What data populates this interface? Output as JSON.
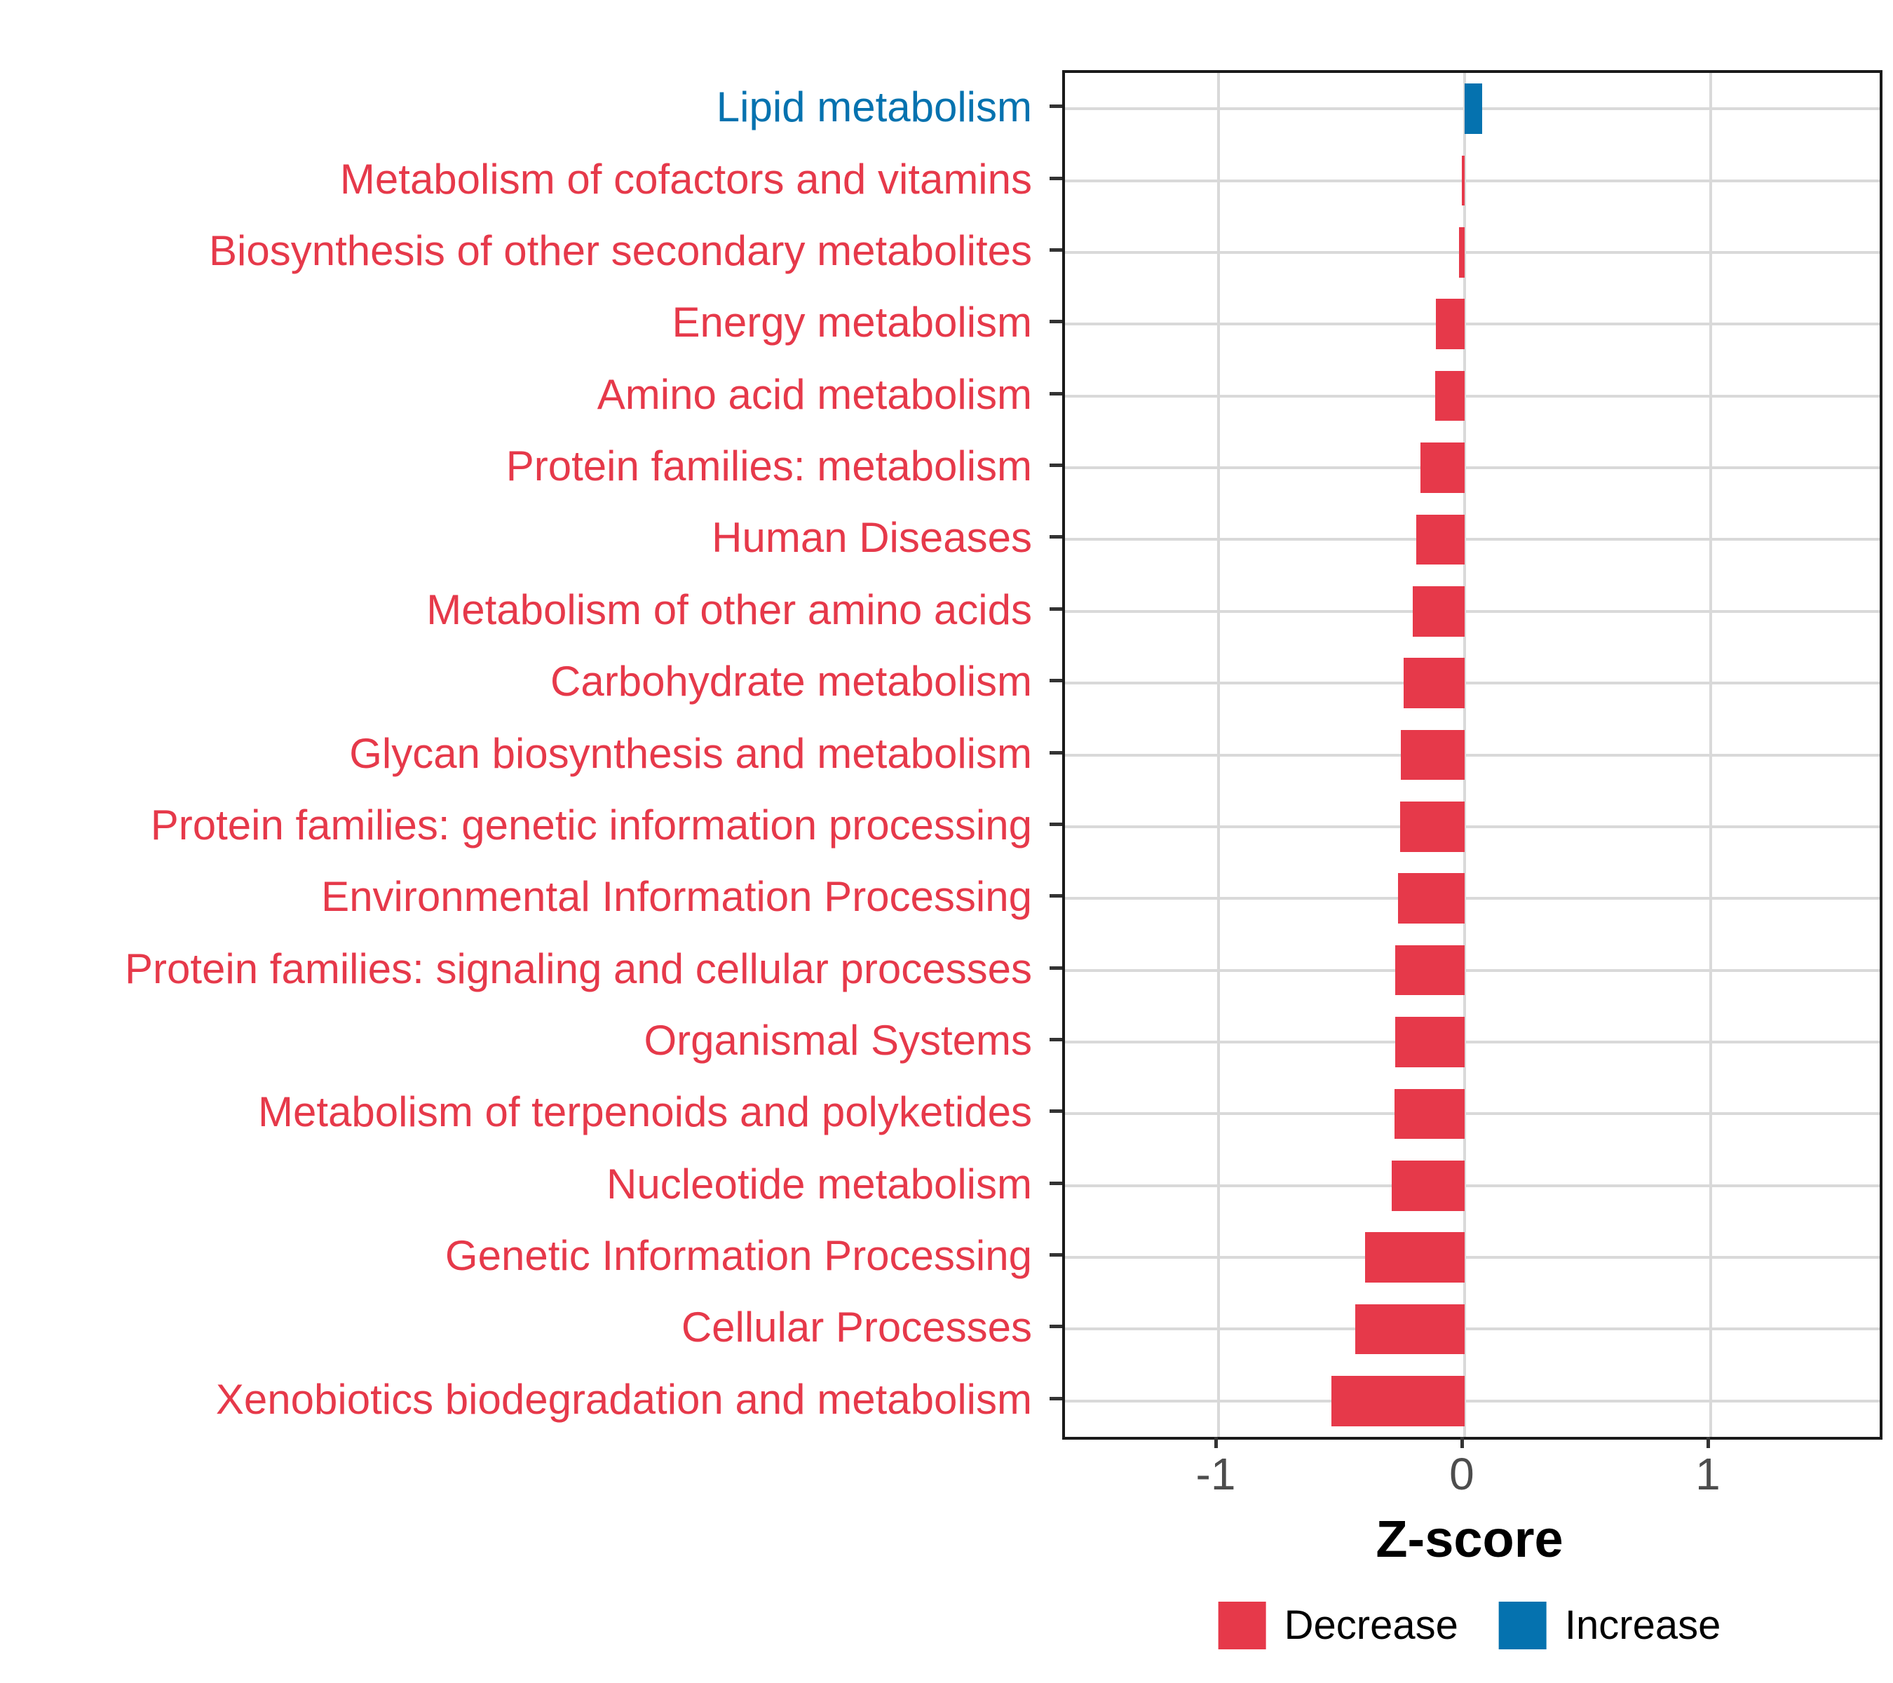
{
  "chart_data": {
    "type": "bar",
    "orientation": "horizontal",
    "title": "",
    "xlabel": "Z-score",
    "ylabel": "",
    "xlim": [
      -1.624,
      1.687
    ],
    "xticks": [
      -1,
      0,
      1
    ],
    "xtick_labels": [
      "-1",
      "0",
      "1"
    ],
    "grid": "on",
    "legend_position": "bottom",
    "bar_height_frac": 0.7,
    "categories": [
      "Lipid metabolism",
      "Metabolism of cofactors and vitamins",
      "Biosynthesis of other secondary metabolites",
      "Energy metabolism",
      "Amino acid metabolism",
      "Protein families: metabolism",
      "Human Diseases",
      "Metabolism of other amino acids",
      "Carbohydrate metabolism",
      "Glycan biosynthesis and metabolism",
      "Protein families: genetic information processing",
      "Environmental Information Processing",
      "Protein families: signaling and cellular processes",
      "Organismal Systems",
      "Metabolism of terpenoids and polyketides",
      "Nucleotide metabolism",
      "Genetic Information Processing",
      "Cellular Processes",
      "Xenobiotics biodegradation and metabolism"
    ],
    "values": [
      0.072,
      -0.012,
      -0.022,
      -0.117,
      -0.12,
      -0.18,
      -0.197,
      -0.211,
      -0.248,
      -0.259,
      -0.262,
      -0.271,
      -0.282,
      -0.282,
      -0.285,
      -0.296,
      -0.405,
      -0.444,
      -0.541
    ],
    "directions": [
      "Increase",
      "Decrease",
      "Decrease",
      "Decrease",
      "Decrease",
      "Decrease",
      "Decrease",
      "Decrease",
      "Decrease",
      "Decrease",
      "Decrease",
      "Decrease",
      "Decrease",
      "Decrease",
      "Decrease",
      "Decrease",
      "Decrease",
      "Decrease",
      "Decrease"
    ],
    "colors": {
      "Decrease": "#e6394a",
      "Increase": "#0572af"
    },
    "style": {
      "grid_color": "#d9d9d9",
      "tick_mark_color": "#333333",
      "tick_label_color": "#4d4d4d",
      "panel_border_color": "#1a1a1a"
    },
    "legend": [
      {
        "label": "Decrease",
        "color": "#e6394a"
      },
      {
        "label": "Increase",
        "color": "#0572af"
      }
    ]
  }
}
